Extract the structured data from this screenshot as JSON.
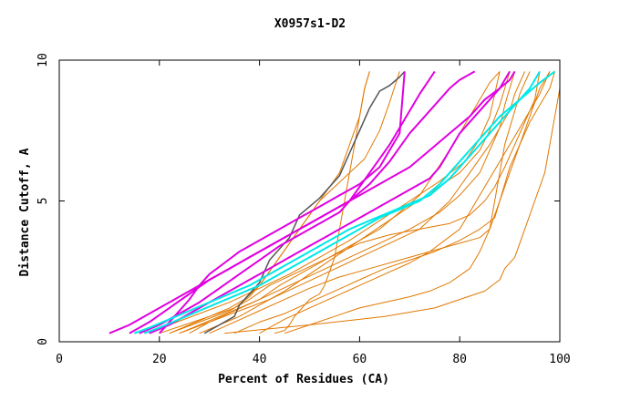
{
  "chart_data": {
    "type": "line",
    "title": "X0957s1-D2",
    "xlabel": "Percent of Residues (CA)",
    "ylabel": "Distance Cutoff, A",
    "xlim": [
      0,
      100
    ],
    "ylim": [
      0,
      10
    ],
    "xticks": [
      0,
      20,
      40,
      60,
      80,
      100
    ],
    "yticks": [
      0,
      5,
      10
    ],
    "grid": false,
    "colors": {
      "orange": "#e07800",
      "magenta": "#e000e0",
      "cyan": "#00e8e8",
      "gray": "#555555"
    },
    "series": [
      {
        "name": "orange-1",
        "color": "orange",
        "x": [
          33,
          50,
          65,
          75,
          80,
          85,
          88,
          89,
          91,
          92,
          93,
          95,
          97,
          98,
          99,
          100,
          100
        ],
        "y": [
          0.3,
          0.6,
          0.9,
          1.2,
          1.5,
          1.8,
          2.2,
          2.6,
          3.0,
          3.5,
          4.0,
          5.0,
          6.0,
          7.0,
          8.0,
          9.0,
          9.6
        ]
      },
      {
        "name": "orange-2",
        "color": "orange",
        "x": [
          43,
          45,
          46,
          47,
          48,
          49,
          50,
          52,
          53,
          54,
          55,
          56,
          57,
          58,
          59,
          60,
          61,
          62
        ],
        "y": [
          0.3,
          0.4,
          0.6,
          0.9,
          1.1,
          1.3,
          1.5,
          1.7,
          2.0,
          2.5,
          3.0,
          4.0,
          5.0,
          6.0,
          7.0,
          8.0,
          9.0,
          9.6
        ]
      },
      {
        "name": "orange-3",
        "color": "orange",
        "x": [
          20,
          25,
          30,
          35,
          38,
          40,
          42,
          44,
          46,
          48,
          50,
          52,
          54,
          56,
          57,
          58,
          59,
          60,
          61,
          62
        ],
        "y": [
          0.3,
          0.6,
          0.9,
          1.2,
          1.6,
          2.0,
          2.5,
          3.0,
          3.5,
          4.0,
          4.5,
          5.0,
          5.5,
          6.0,
          6.5,
          7.0,
          7.5,
          8.0,
          9.0,
          9.6
        ]
      },
      {
        "name": "orange-4",
        "color": "orange",
        "x": [
          22,
          26,
          30,
          34,
          37,
          40,
          42,
          44,
          46,
          48,
          50,
          52,
          55,
          58,
          61,
          64,
          66,
          68
        ],
        "y": [
          0.3,
          0.6,
          0.9,
          1.2,
          1.5,
          2.0,
          2.5,
          3.0,
          3.5,
          4.0,
          4.5,
          5.0,
          5.5,
          6.0,
          6.5,
          7.5,
          8.5,
          9.6
        ]
      },
      {
        "name": "orange-5",
        "color": "orange",
        "x": [
          24,
          28,
          32,
          36,
          40,
          44,
          48,
          52,
          56,
          60,
          64,
          68,
          72,
          75,
          78,
          80,
          82,
          84,
          86,
          88
        ],
        "y": [
          0.3,
          0.6,
          0.9,
          1.2,
          1.5,
          2.0,
          2.4,
          2.8,
          3.2,
          3.6,
          4.0,
          4.6,
          5.2,
          6.0,
          6.8,
          7.4,
          8.0,
          8.6,
          9.2,
          9.6
        ]
      },
      {
        "name": "orange-6",
        "color": "orange",
        "x": [
          28,
          32,
          36,
          40,
          45,
          50,
          55,
          60,
          65,
          70,
          75,
          80,
          84,
          86,
          88,
          89,
          90
        ],
        "y": [
          0.3,
          0.6,
          0.9,
          1.3,
          1.8,
          2.4,
          3.0,
          3.6,
          4.2,
          4.8,
          5.4,
          6.0,
          6.8,
          7.5,
          8.4,
          9.0,
          9.6
        ]
      },
      {
        "name": "orange-7",
        "color": "orange",
        "x": [
          18,
          22,
          28,
          34,
          40,
          46,
          52,
          58,
          64,
          70,
          76,
          81,
          84,
          86,
          87,
          88
        ],
        "y": [
          0.3,
          0.6,
          1.0,
          1.4,
          1.9,
          2.4,
          3.0,
          3.6,
          4.3,
          5.0,
          5.7,
          6.4,
          7.2,
          8.0,
          8.8,
          9.6
        ]
      },
      {
        "name": "orange-8",
        "color": "orange",
        "x": [
          24,
          30,
          36,
          42,
          48,
          54,
          60,
          66,
          72,
          78,
          82,
          86,
          88,
          90,
          91,
          92,
          93
        ],
        "y": [
          0.3,
          0.7,
          1.1,
          1.5,
          2.0,
          2.5,
          3.0,
          3.5,
          4.0,
          5.0,
          6.0,
          7.0,
          7.6,
          8.2,
          8.8,
          9.2,
          9.6
        ]
      },
      {
        "name": "orange-9",
        "color": "orange",
        "x": [
          26,
          30,
          35,
          40,
          46,
          52,
          58,
          64,
          70,
          76,
          80,
          84,
          86,
          88,
          89,
          90,
          91
        ],
        "y": [
          0.3,
          0.7,
          1.1,
          1.5,
          2.0,
          2.5,
          3.0,
          3.5,
          4.0,
          4.6,
          5.2,
          6.0,
          6.8,
          7.6,
          8.4,
          9.0,
          9.6
        ]
      },
      {
        "name": "orange-10",
        "color": "orange",
        "x": [
          22,
          28,
          34,
          38,
          42,
          48,
          54,
          60,
          66,
          72,
          78,
          82,
          85,
          87,
          89,
          91,
          93,
          95,
          96
        ],
        "y": [
          0.3,
          0.7,
          1.1,
          1.5,
          2.0,
          2.5,
          3.0,
          3.5,
          3.8,
          4.0,
          4.2,
          4.5,
          5.0,
          5.5,
          6.2,
          7.0,
          7.8,
          8.6,
          9.6
        ]
      },
      {
        "name": "orange-11",
        "color": "orange",
        "x": [
          30,
          35,
          40,
          45,
          50,
          56,
          62,
          68,
          74,
          78,
          80,
          82,
          84,
          86,
          88,
          90,
          92,
          94,
          96,
          98
        ],
        "y": [
          0.3,
          0.7,
          1.1,
          1.5,
          1.9,
          2.3,
          2.6,
          2.9,
          3.2,
          3.4,
          3.5,
          3.6,
          3.7,
          4.0,
          5.0,
          6.0,
          7.0,
          8.0,
          9.0,
          9.6
        ]
      },
      {
        "name": "orange-12",
        "color": "orange",
        "x": [
          35,
          40,
          45,
          50,
          55,
          60,
          65,
          70,
          75,
          80,
          84,
          87,
          88,
          89,
          90,
          92,
          94,
          96,
          98,
          99
        ],
        "y": [
          0.3,
          0.7,
          1.0,
          1.4,
          1.8,
          2.2,
          2.6,
          2.9,
          3.2,
          3.6,
          4.0,
          4.4,
          5.0,
          5.6,
          6.2,
          7.0,
          7.8,
          8.4,
          9.0,
          9.6
        ]
      },
      {
        "name": "orange-13",
        "color": "orange",
        "x": [
          40,
          45,
          50,
          55,
          60,
          65,
          70,
          74,
          77,
          80,
          82,
          84,
          86,
          88,
          90,
          92,
          94,
          96,
          97,
          98
        ],
        "y": [
          0.3,
          0.8,
          1.2,
          1.6,
          2.0,
          2.4,
          2.8,
          3.2,
          3.6,
          4.0,
          4.6,
          5.2,
          5.8,
          6.4,
          7.0,
          7.6,
          8.2,
          8.8,
          9.2,
          9.6
        ]
      },
      {
        "name": "orange-14",
        "color": "orange",
        "x": [
          45,
          50,
          55,
          60,
          65,
          70,
          74,
          78,
          82,
          84,
          86,
          87,
          88,
          89,
          90,
          91,
          92,
          93,
          94
        ],
        "y": [
          0.3,
          0.6,
          0.9,
          1.2,
          1.4,
          1.6,
          1.8,
          2.1,
          2.6,
          3.2,
          4.0,
          5.0,
          6.0,
          7.0,
          7.6,
          8.2,
          8.8,
          9.2,
          9.6
        ]
      },
      {
        "name": "magenta-1",
        "color": "magenta",
        "x": [
          10,
          14,
          18,
          22,
          26,
          30,
          34,
          38,
          42,
          46,
          50,
          54,
          58,
          62,
          66,
          70,
          74,
          78,
          80,
          83
        ],
        "y": [
          0.3,
          0.6,
          1.0,
          1.4,
          1.8,
          2.2,
          2.6,
          3.0,
          3.4,
          3.8,
          4.2,
          4.6,
          5.0,
          5.6,
          6.4,
          7.4,
          8.2,
          9.0,
          9.3,
          9.6
        ]
      },
      {
        "name": "magenta-2",
        "color": "magenta",
        "x": [
          14,
          18,
          22,
          26,
          30,
          34,
          38,
          42,
          46,
          50,
          54,
          58,
          62,
          66,
          70,
          74,
          78,
          82,
          85,
          88,
          90,
          91
        ],
        "y": [
          0.3,
          0.7,
          1.2,
          1.7,
          2.2,
          2.6,
          3.0,
          3.4,
          3.8,
          4.2,
          4.6,
          5.0,
          5.4,
          5.8,
          6.2,
          6.8,
          7.4,
          8.0,
          8.6,
          9.0,
          9.3,
          9.6
        ]
      },
      {
        "name": "magenta-3",
        "color": "magenta",
        "x": [
          20,
          22,
          24,
          26,
          28,
          30,
          33,
          36,
          40,
          44,
          48,
          52,
          56,
          60,
          64,
          66,
          68,
          69
        ],
        "y": [
          0.3,
          0.7,
          1.1,
          1.5,
          2.0,
          2.4,
          2.8,
          3.2,
          3.6,
          4.0,
          4.4,
          4.8,
          5.2,
          5.6,
          6.2,
          6.8,
          7.4,
          9.6
        ]
      },
      {
        "name": "magenta-4",
        "color": "magenta",
        "x": [
          16,
          20,
          24,
          28,
          32,
          36,
          40,
          44,
          48,
          52,
          56,
          58,
          60,
          62,
          64,
          66,
          68,
          70,
          72,
          75
        ],
        "y": [
          0.3,
          0.6,
          1.0,
          1.4,
          1.9,
          2.4,
          2.9,
          3.4,
          3.8,
          4.2,
          4.6,
          5.0,
          5.5,
          6.0,
          6.5,
          7.0,
          7.6,
          8.2,
          8.8,
          9.6
        ]
      },
      {
        "name": "magenta-5",
        "color": "magenta",
        "x": [
          18,
          22,
          26,
          30,
          34,
          38,
          42,
          46,
          50,
          54,
          58,
          62,
          66,
          70,
          74,
          76,
          78,
          80,
          84,
          88,
          90
        ],
        "y": [
          0.3,
          0.6,
          1.0,
          1.4,
          1.8,
          2.2,
          2.6,
          3.0,
          3.4,
          3.8,
          4.2,
          4.6,
          5.0,
          5.4,
          5.8,
          6.2,
          6.8,
          7.4,
          8.2,
          9.0,
          9.6
        ]
      },
      {
        "name": "cyan-1",
        "color": "cyan",
        "x": [
          17,
          20,
          24,
          28,
          32,
          36,
          40,
          44,
          48,
          52,
          56,
          60,
          64,
          68,
          72,
          76,
          80,
          84,
          88,
          92,
          96,
          99
        ],
        "y": [
          0.3,
          0.5,
          0.8,
          1.1,
          1.4,
          1.7,
          2.0,
          2.4,
          2.8,
          3.2,
          3.6,
          4.0,
          4.4,
          4.7,
          5.0,
          5.6,
          6.4,
          7.2,
          8.0,
          8.6,
          9.2,
          9.6
        ]
      },
      {
        "name": "cyan-2",
        "color": "cyan",
        "x": [
          15,
          18,
          22,
          26,
          30,
          34,
          38,
          42,
          46,
          50,
          54,
          58,
          62,
          66,
          70,
          74,
          78,
          82,
          86,
          90,
          94,
          96
        ],
        "y": [
          0.3,
          0.5,
          0.8,
          1.1,
          1.4,
          1.7,
          2.0,
          2.4,
          2.8,
          3.2,
          3.6,
          4.0,
          4.3,
          4.6,
          4.9,
          5.2,
          5.8,
          6.6,
          7.4,
          8.2,
          9.0,
          9.6
        ]
      },
      {
        "name": "gray-1",
        "color": "gray",
        "x": [
          29,
          32,
          35,
          36,
          38,
          40,
          41,
          42,
          44,
          46,
          47,
          48,
          50,
          52,
          54,
          56,
          57,
          58,
          59,
          60,
          61,
          62,
          63,
          64,
          66,
          68,
          69
        ],
        "y": [
          0.3,
          0.6,
          0.9,
          1.3,
          1.7,
          2.1,
          2.5,
          2.9,
          3.3,
          3.7,
          4.1,
          4.5,
          4.8,
          5.1,
          5.5,
          5.9,
          6.3,
          6.7,
          7.1,
          7.5,
          7.9,
          8.3,
          8.6,
          8.9,
          9.1,
          9.4,
          9.6
        ]
      }
    ]
  }
}
